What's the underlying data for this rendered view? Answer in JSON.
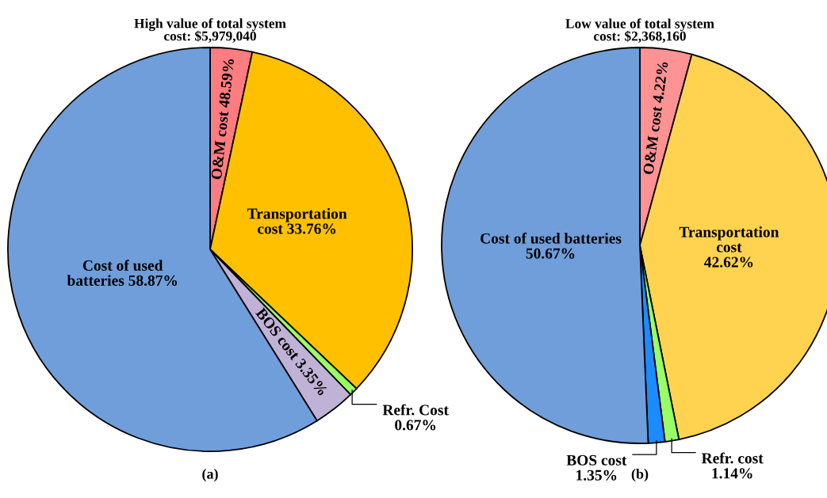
{
  "chart_data": [
    {
      "type": "pie",
      "title": "High value of total system\ncost: $5,979,040",
      "categories": [
        "O&M cost 48.59%",
        "Transportation\ncost 33.76%",
        "Refr. Cost\n0.67%",
        "BOS cost 3.35%",
        "Cost of used\nbatteries 58.87%"
      ],
      "values": [
        3.35,
        33.76,
        0.67,
        3.35,
        58.87
      ],
      "colors": [
        "#ff7c80",
        "#ffc000",
        "#99ff66",
        "#c0b2d6",
        "#6f9edb"
      ],
      "annotations": [
        "(a)"
      ],
      "legend": false
    },
    {
      "type": "pie",
      "title": "Low value of total system\ncost: $2,368,160",
      "categories": [
        "O&M cost 4.22%",
        "Transportation\ncost\n42.62%",
        "Refr. cost\n1.14%",
        "BOS cost\n1.35%",
        "Cost of used batteries\n50.67%"
      ],
      "values": [
        4.22,
        42.62,
        1.14,
        1.35,
        50.67
      ],
      "colors": [
        "#ff9393",
        "#ffd350",
        "#99ff66",
        "#1a8cff",
        "#6f9edb"
      ],
      "annotations": [
        "(b)"
      ],
      "legend": false
    }
  ]
}
